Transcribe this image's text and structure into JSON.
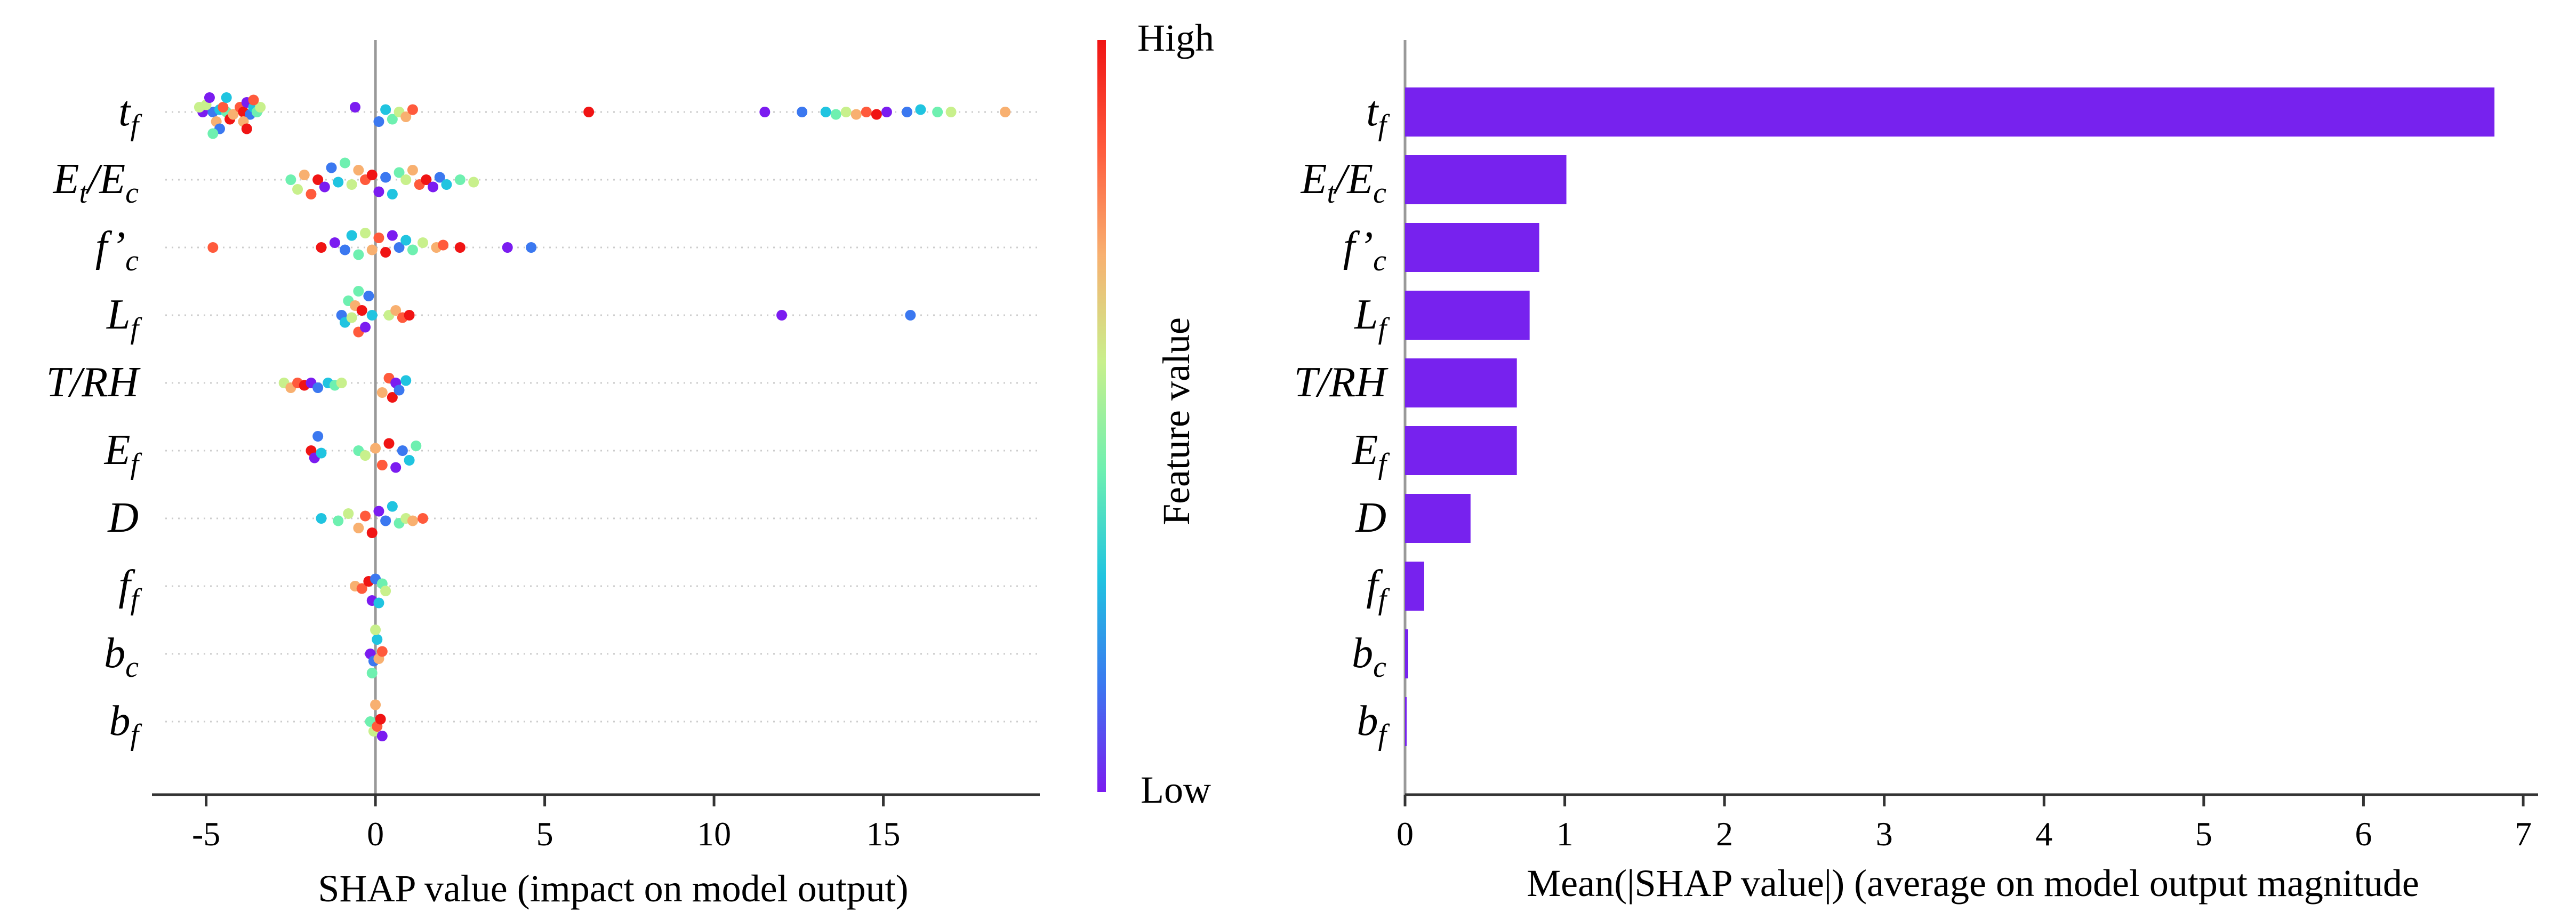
{
  "chart_data": [
    {
      "type": "scatter",
      "subtype": "shap-beeswarm",
      "features": [
        {
          "base": "t",
          "sub": "f",
          "sup": ""
        },
        {
          "base": "E",
          "sub": "t",
          "sup": "",
          "tail_base": "/E",
          "tail_sub": "c"
        },
        {
          "base": "f’",
          "sub": "c",
          "sup": ""
        },
        {
          "base": "L",
          "sub": "f",
          "sup": ""
        },
        {
          "base": "T/RH",
          "sub": "",
          "sup": ""
        },
        {
          "base": "E",
          "sub": "f",
          "sup": ""
        },
        {
          "base": "D",
          "sub": "",
          "sup": ""
        },
        {
          "base": "f",
          "sub": "f",
          "sup": ""
        },
        {
          "base": "b",
          "sub": "c",
          "sup": ""
        },
        {
          "base": "b",
          "sub": "f",
          "sup": ""
        }
      ],
      "xlabel": "SHAP value (impact on model output)",
      "xlim": [
        -6.6,
        19.7
      ],
      "xticks": [
        -5,
        0,
        5,
        10,
        15
      ],
      "xtick_labels": [
        "-5",
        "0",
        "5",
        "10",
        "15"
      ],
      "zero_line_color": "#999999",
      "colorbar": {
        "label": "Feature value",
        "high_label": "High",
        "low_label": "Low",
        "colors": [
          "#7b1cf0",
          "#3b78f0",
          "#20c4e0",
          "#6ef0b0",
          "#c8f08c",
          "#f8b070",
          "#ff5a3c",
          "#f01414"
        ]
      },
      "points": [
        [
          [
            -5.1,
            0.0
          ],
          [
            -4.8,
            0.0
          ],
          [
            -4.6,
            0.05
          ],
          [
            -4.4,
            0.0
          ],
          [
            -5.0,
            0.15
          ],
          [
            -4.7,
            0.2
          ],
          [
            -4.5,
            0.1
          ],
          [
            -4.3,
            0.15
          ],
          [
            -4.9,
            0.3
          ],
          [
            -4.6,
            0.35
          ],
          [
            -4.4,
            0.3
          ],
          [
            -4.8,
            0.45
          ],
          [
            -5.2,
            0.1
          ],
          [
            -4.2,
            0.05
          ],
          [
            -4.0,
            0.1
          ],
          [
            -3.9,
            0.0
          ],
          [
            -3.8,
            0.2
          ],
          [
            -3.7,
            0.05
          ],
          [
            -3.6,
            0.1
          ],
          [
            -3.5,
            0.0
          ],
          [
            -3.4,
            0.1
          ],
          [
            -3.9,
            0.2
          ],
          [
            -3.6,
            0.25
          ],
          [
            -3.8,
            0.35
          ],
          [
            -0.6,
            0.1
          ],
          [
            0.1,
            0.2
          ],
          [
            0.3,
            0.05
          ],
          [
            0.5,
            0.15
          ],
          [
            0.7,
            0.0
          ],
          [
            0.9,
            0.1
          ],
          [
            1.1,
            0.05
          ],
          [
            6.3,
            0.0
          ],
          [
            11.5,
            0.0
          ],
          [
            12.6,
            0.0
          ],
          [
            13.3,
            0.0
          ],
          [
            13.6,
            0.05
          ],
          [
            13.9,
            0.0
          ],
          [
            14.2,
            0.05
          ],
          [
            14.5,
            0.0
          ],
          [
            14.8,
            0.05
          ],
          [
            15.1,
            0.0
          ],
          [
            15.7,
            0.0
          ],
          [
            16.1,
            0.05
          ],
          [
            16.6,
            0.0
          ],
          [
            17.0,
            0.0
          ],
          [
            18.6,
            0.0
          ]
        ],
        [
          [
            -2.5,
            0.0
          ],
          [
            -2.3,
            0.2
          ],
          [
            -2.1,
            0.1
          ],
          [
            -1.9,
            0.3
          ],
          [
            -1.7,
            0.0
          ],
          [
            -1.5,
            0.15
          ],
          [
            -1.3,
            0.25
          ],
          [
            -1.1,
            0.05
          ],
          [
            -0.9,
            0.35
          ],
          [
            -0.7,
            0.1
          ],
          [
            -0.5,
            0.2
          ],
          [
            -0.3,
            0.0
          ],
          [
            -0.1,
            0.1
          ],
          [
            0.1,
            0.25
          ],
          [
            0.3,
            0.05
          ],
          [
            0.5,
            0.3
          ],
          [
            0.7,
            0.15
          ],
          [
            0.9,
            0.0
          ],
          [
            1.1,
            0.2
          ],
          [
            1.3,
            0.1
          ],
          [
            1.5,
            0.0
          ],
          [
            1.7,
            0.15
          ],
          [
            1.9,
            0.05
          ],
          [
            2.1,
            0.1
          ],
          [
            2.5,
            0.0
          ],
          [
            2.9,
            0.05
          ]
        ],
        [
          [
            -4.8,
            0.0
          ],
          [
            -1.6,
            0.0
          ],
          [
            -1.2,
            0.1
          ],
          [
            -0.9,
            0.05
          ],
          [
            -0.7,
            0.25
          ],
          [
            -0.5,
            0.15
          ],
          [
            -0.3,
            0.3
          ],
          [
            -0.1,
            0.05
          ],
          [
            0.1,
            0.2
          ],
          [
            0.3,
            0.1
          ],
          [
            0.5,
            0.25
          ],
          [
            0.7,
            0.0
          ],
          [
            0.9,
            0.15
          ],
          [
            1.1,
            0.05
          ],
          [
            1.4,
            0.1
          ],
          [
            1.8,
            0.0
          ],
          [
            2.0,
            0.05
          ],
          [
            2.5,
            0.0
          ],
          [
            3.9,
            0.0
          ],
          [
            4.6,
            0.0
          ]
        ],
        [
          [
            -1.0,
            0.0
          ],
          [
            -0.9,
            0.15
          ],
          [
            -0.8,
            0.3
          ],
          [
            -0.7,
            0.05
          ],
          [
            -0.6,
            0.2
          ],
          [
            -0.5,
            0.35
          ],
          [
            -0.4,
            0.1
          ],
          [
            -0.3,
            0.25
          ],
          [
            -0.2,
            0.4
          ],
          [
            -0.1,
            0.0
          ],
          [
            -0.5,
            0.5
          ],
          [
            0.4,
            0.0
          ],
          [
            0.6,
            0.1
          ],
          [
            0.8,
            0.05
          ],
          [
            1.0,
            0.0
          ],
          [
            12.0,
            0.0
          ],
          [
            15.8,
            0.0
          ]
        ],
        [
          [
            -2.7,
            0.0
          ],
          [
            -2.5,
            0.1
          ],
          [
            -2.3,
            0.0
          ],
          [
            -2.1,
            0.05
          ],
          [
            -1.9,
            0.0
          ],
          [
            -1.7,
            0.1
          ],
          [
            -1.4,
            0.0
          ],
          [
            -1.2,
            0.05
          ],
          [
            -1.0,
            0.0
          ],
          [
            0.2,
            0.2
          ],
          [
            0.4,
            0.1
          ],
          [
            0.5,
            0.3
          ],
          [
            0.6,
            0.0
          ],
          [
            0.7,
            0.15
          ],
          [
            0.9,
            0.05
          ]
        ],
        [
          [
            -1.9,
            0.0
          ],
          [
            -1.8,
            0.15
          ],
          [
            -1.7,
            0.3
          ],
          [
            -1.6,
            0.05
          ],
          [
            -0.5,
            0.0
          ],
          [
            -0.3,
            0.1
          ],
          [
            0.0,
            0.05
          ],
          [
            0.2,
            0.3
          ],
          [
            0.4,
            0.15
          ],
          [
            0.6,
            0.35
          ],
          [
            0.8,
            0.0
          ],
          [
            1.0,
            0.2
          ],
          [
            1.2,
            0.1
          ]
        ],
        [
          [
            -1.6,
            0.0
          ],
          [
            -1.1,
            0.05
          ],
          [
            -0.8,
            0.1
          ],
          [
            -0.5,
            0.2
          ],
          [
            -0.3,
            0.05
          ],
          [
            -0.1,
            0.3
          ],
          [
            0.1,
            0.15
          ],
          [
            0.3,
            0.05
          ],
          [
            0.5,
            0.25
          ],
          [
            0.7,
            0.1
          ],
          [
            0.9,
            0.0
          ],
          [
            1.1,
            0.05
          ],
          [
            1.4,
            0.0
          ]
        ],
        [
          [
            -0.6,
            0.0
          ],
          [
            -0.4,
            0.05
          ],
          [
            -0.2,
            0.1
          ],
          [
            -0.1,
            0.3
          ],
          [
            0.0,
            0.15
          ],
          [
            0.1,
            0.35
          ],
          [
            0.2,
            0.05
          ],
          [
            0.3,
            0.1
          ]
        ],
        [
          [
            -0.15,
            0.0
          ],
          [
            -0.05,
            0.15
          ],
          [
            0.05,
            0.3
          ],
          [
            -0.1,
            0.4
          ],
          [
            0.0,
            0.5
          ],
          [
            0.1,
            0.1
          ],
          [
            0.2,
            0.05
          ]
        ],
        [
          [
            -0.15,
            0.0
          ],
          [
            -0.05,
            0.2
          ],
          [
            0.0,
            0.35
          ],
          [
            0.05,
            0.1
          ],
          [
            0.15,
            0.05
          ],
          [
            0.2,
            0.3
          ]
        ]
      ]
    },
    {
      "type": "bar",
      "orientation": "horizontal",
      "categories": [
        "tf",
        "Et/Ec",
        "f’c",
        "Lf",
        "T/RH",
        "Ef",
        "D",
        "ff",
        "bc",
        "bf"
      ],
      "values": [
        6.82,
        1.01,
        0.84,
        0.78,
        0.7,
        0.7,
        0.41,
        0.12,
        0.02,
        0.01
      ],
      "xlabel": "Mean(|SHAP value|) (average on model output magnitude",
      "xlim": [
        0,
        7.2
      ],
      "xticks": [
        0,
        1,
        2,
        3,
        4,
        5,
        6,
        7
      ],
      "xtick_labels": [
        "0",
        "1",
        "2",
        "3",
        "4",
        "5",
        "6",
        "7"
      ],
      "bar_color": "#7722ee"
    }
  ]
}
